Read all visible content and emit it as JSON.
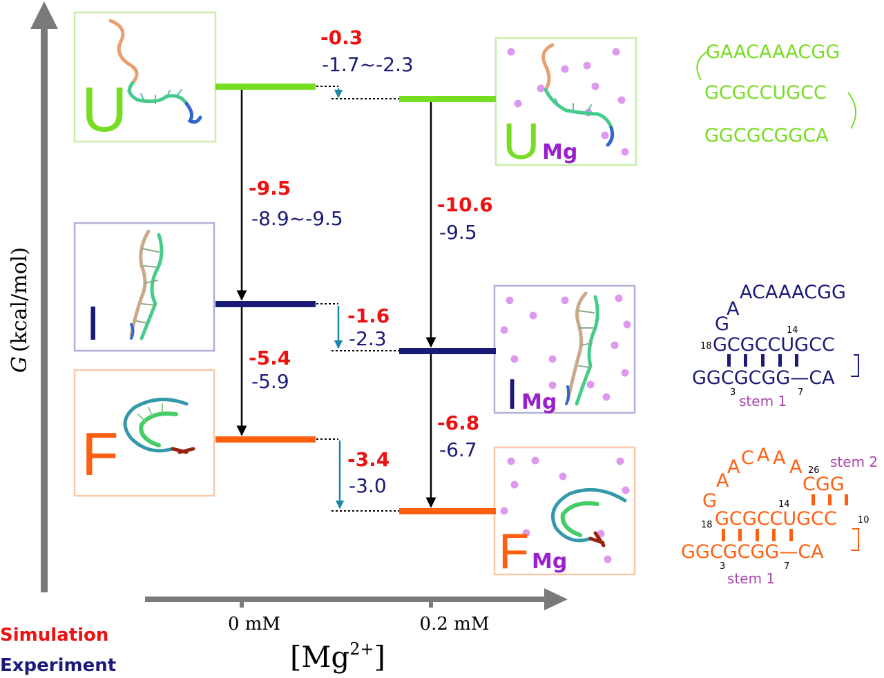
{
  "axes": {
    "y_label_italic": "G",
    "y_label_rest": "(kcal/mol)",
    "x_label_base": "[Mg",
    "x_label_sup": "2+",
    "x_label_close": "]",
    "x_ticks": [
      "0 mM",
      "0.2 mM"
    ]
  },
  "legend": {
    "simulation": "Simulation",
    "experiment": "Experiment"
  },
  "states": {
    "U": {
      "label": "U"
    },
    "I": {
      "label": "I"
    },
    "F": {
      "label": "F"
    },
    "U_mg": {
      "label": "U",
      "sub": "Mg"
    },
    "I_mg": {
      "label": "I",
      "sub": "Mg"
    },
    "F_mg": {
      "label": "F",
      "sub": "Mg"
    }
  },
  "transitions": {
    "u_to_i_0": {
      "sim": "-9.5",
      "exp": "-8.9~-9.5"
    },
    "i_to_f_0": {
      "sim": "-5.4",
      "exp": "-5.9"
    },
    "u_to_i_mg": {
      "sim": "-10.6",
      "exp": "-9.5"
    },
    "i_to_f_mg": {
      "sim": "-6.8",
      "exp": "-6.7"
    },
    "mg_shift_u": {
      "sim": "-0.3",
      "exp": "-1.7~-2.3"
    },
    "mg_shift_i": {
      "sim": "-1.6",
      "exp": "-2.3"
    },
    "mg_shift_f": {
      "sim": "-3.4",
      "exp": "-3.0"
    }
  },
  "sequences": {
    "unfolded": [
      "GAACAAACGG",
      "GCGCCUGCC",
      "GGCGCGGCA"
    ],
    "intermediate": {
      "loop": "ACAAACGG",
      "a": "A",
      "g": "G",
      "top_strand": "GCGCCUGCC",
      "bottom_strand": "GGCGCGG—CA",
      "num_18": "18",
      "num_14": "14",
      "num_3": "3",
      "num_7": "7",
      "stem1": "stem 1"
    },
    "folded": {
      "loop_letters": [
        "A",
        "A",
        "C",
        "A",
        "A",
        "A"
      ],
      "num_26": "26",
      "cgg": "CGG",
      "g": "G",
      "top_strand": "GCGCCUGCC",
      "bottom_strand": "GGCGCGG—CA",
      "num_18": "18",
      "num_14": "14",
      "num_10": "10",
      "num_3": "3",
      "num_7": "7",
      "stem1": "stem 1",
      "stem2": "stem 2"
    }
  },
  "colors": {
    "sim_red": "#ee1111",
    "exp_navy": "#1a1a78",
    "unfolded_green": "#77dd22",
    "intermediate_navy": "#1a1a78",
    "folded_orange": "#ff6010",
    "mg_purple": "#9922cc",
    "ion_pink": "#dd99ee",
    "teal_arrow": "#1888aa",
    "stem_label": "#aa44aa",
    "axis_gray": "#7a7a7a"
  }
}
